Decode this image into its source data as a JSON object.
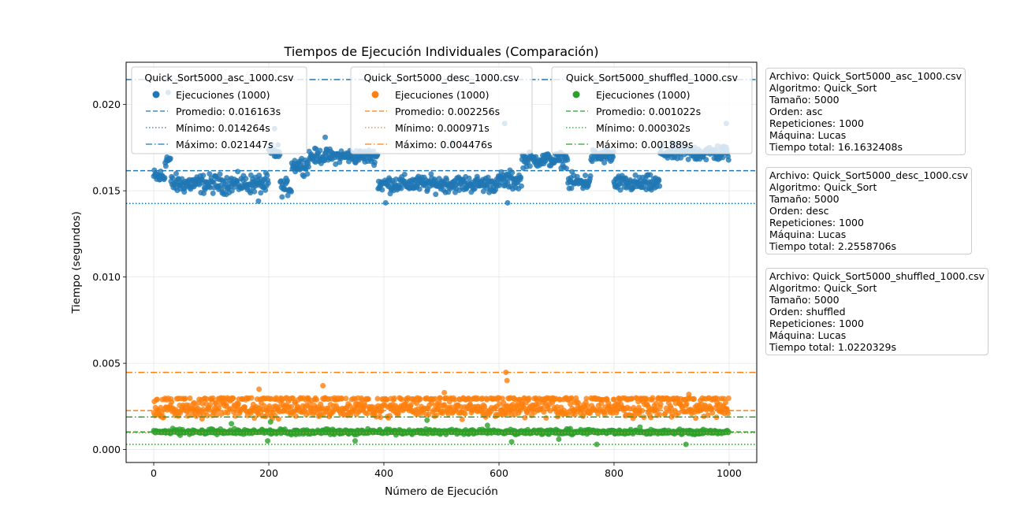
{
  "chart_data": {
    "type": "scatter",
    "title": "Tiempos de Ejecución Individuales (Comparación)",
    "xlabel": "Número de Ejecución",
    "ylabel": "Tiempo (segundos)",
    "xlim": [
      -48,
      1048
    ],
    "ylim": [
      -0.00075,
      0.02245
    ],
    "xticks": [
      0,
      200,
      400,
      600,
      800,
      1000
    ],
    "xtick_labels": [
      "0",
      "200",
      "400",
      "600",
      "800",
      "1000"
    ],
    "yticks": [
      0.0,
      0.005,
      0.01,
      0.015,
      0.02
    ],
    "ytick_labels": [
      "0.000",
      "0.005",
      "0.010",
      "0.015",
      "0.020"
    ],
    "grid": true,
    "series": [
      {
        "legend_title": "Quick_Sort5000_asc_1000.csv",
        "color": "#1f77b4",
        "n_points": 1000,
        "scatter_label": "Ejecuciones (1000)",
        "mean_label": "Promedio: 0.016163s",
        "min_label": "Mínimo: 0.014264s",
        "max_label": "Máximo: 0.021447s",
        "mean": 0.016163,
        "min": 0.014264,
        "max": 0.021447,
        "segments": [
          {
            "x": [
              0,
              20
            ],
            "level": 0.0158,
            "spread": 0.0007
          },
          {
            "x": [
              20,
              30
            ],
            "level": 0.0168,
            "spread": 0.0006
          },
          {
            "x": [
              30,
              200
            ],
            "level": 0.0154,
            "spread": 0.0008
          },
          {
            "x": [
              200,
              220
            ],
            "level": 0.0172,
            "spread": 0.0007
          },
          {
            "x": [
              220,
              240
            ],
            "level": 0.0152,
            "spread": 0.0007
          },
          {
            "x": [
              240,
              270
            ],
            "level": 0.0165,
            "spread": 0.0007
          },
          {
            "x": [
              270,
              390
            ],
            "level": 0.017,
            "spread": 0.0006
          },
          {
            "x": [
              390,
              600
            ],
            "level": 0.0154,
            "spread": 0.0007
          },
          {
            "x": [
              600,
              640
            ],
            "level": 0.0156,
            "spread": 0.0008
          },
          {
            "x": [
              640,
              720
            ],
            "level": 0.0168,
            "spread": 0.0006
          },
          {
            "x": [
              720,
              760
            ],
            "level": 0.0155,
            "spread": 0.0007
          },
          {
            "x": [
              760,
              800
            ],
            "level": 0.017,
            "spread": 0.0006
          },
          {
            "x": [
              800,
              880
            ],
            "level": 0.0154,
            "spread": 0.0007
          },
          {
            "x": [
              880,
              1000
            ],
            "level": 0.0172,
            "spread": 0.0007
          }
        ],
        "outliers": [
          [
            298,
            0.0181
          ],
          [
            520,
            0.0178
          ],
          [
            610,
            0.0189
          ],
          [
            182,
            0.0144
          ],
          [
            403,
            0.0143
          ],
          [
            615,
            0.0143
          ],
          [
            25,
            0.0207
          ],
          [
            210,
            0.0186
          ],
          [
            995,
            0.0189
          ]
        ]
      },
      {
        "legend_title": "Quick_Sort5000_desc_1000.csv",
        "color": "#ff7f0e",
        "n_points": 1000,
        "scatter_label": "Ejecuciones (1000)",
        "mean_label": "Promedio: 0.002256s",
        "min_label": "Mínimo: 0.000971s",
        "max_label": "Máximo: 0.004476s",
        "mean": 0.002256,
        "min": 0.000971,
        "max": 0.004476,
        "segments": [
          {
            "x": [
              0,
              1000
            ],
            "level": 0.00235,
            "spread": 0.00068
          }
        ],
        "outliers": [
          [
            612,
            0.004476
          ],
          [
            614,
            0.004
          ],
          [
            183,
            0.0035
          ],
          [
            294,
            0.0037
          ],
          [
            620,
            0.003
          ],
          [
            930,
            0.0032
          ],
          [
            505,
            0.0033
          ]
        ]
      },
      {
        "legend_title": "Quick_Sort5000_shuffled_1000.csv",
        "color": "#2ca02c",
        "n_points": 1000,
        "scatter_label": "Ejecuciones (1000)",
        "mean_label": "Promedio: 0.001022s",
        "min_label": "Mínimo: 0.000302s",
        "max_label": "Máximo: 0.001889s",
        "mean": 0.001022,
        "min": 0.000302,
        "max": 0.001889,
        "segments": [
          {
            "x": [
              0,
              1000
            ],
            "level": 0.00103,
            "spread": 0.00022
          }
        ],
        "outliers": [
          [
            770,
            0.000302
          ],
          [
            925,
            0.000302
          ],
          [
            622,
            0.00045
          ],
          [
            350,
            0.0005
          ],
          [
            198,
            0.0005
          ],
          [
            704,
            0.0006
          ],
          [
            203,
            0.0016
          ],
          [
            580,
            0.0014
          ],
          [
            475,
            0.0017
          ],
          [
            135,
            0.0015
          ],
          [
            845,
            0.0013
          ]
        ]
      }
    ]
  },
  "info_boxes": [
    {
      "lines": [
        "Archivo: Quick_Sort5000_asc_1000.csv",
        "Algoritmo: Quick_Sort",
        "Tamaño: 5000",
        "Orden: asc",
        "Repeticiones: 1000",
        "Máquina: Lucas",
        "Tiempo total: 16.1632408s"
      ]
    },
    {
      "lines": [
        "Archivo: Quick_Sort5000_desc_1000.csv",
        "Algoritmo: Quick_Sort",
        "Tamaño: 5000",
        "Orden: desc",
        "Repeticiones: 1000",
        "Máquina: Lucas",
        "Tiempo total: 2.2558706s"
      ]
    },
    {
      "lines": [
        "Archivo: Quick_Sort5000_shuffled_1000.csv",
        "Algoritmo: Quick_Sort",
        "Tamaño: 5000",
        "Orden: shuffled",
        "Repeticiones: 1000",
        "Máquina: Lucas",
        "Tiempo total: 1.0220329s"
      ]
    }
  ]
}
